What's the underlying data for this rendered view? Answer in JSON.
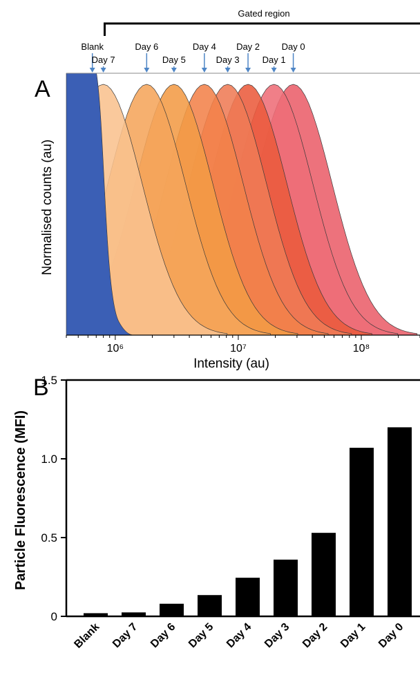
{
  "panel_a": {
    "panel_label": "A",
    "gate_label": "Gated region",
    "ylabel": "Normalised counts (au)",
    "xlabel": "Intensity (au)",
    "xtick_labels": [
      "10⁶",
      "10⁷",
      "10⁸"
    ],
    "marker_color": "#4f86c6",
    "blank_color": "#3b5fb5"
  },
  "panel_b": {
    "panel_label": "B",
    "ylabel": "Particle Fluorescence (MFI)",
    "ytick_labels": [
      "0",
      "0.5",
      "1.0",
      "1.5"
    ],
    "bar_color": "#000000"
  },
  "chart_data": [
    {
      "type": "area",
      "title": "",
      "xlabel": "Intensity (au)",
      "ylabel": "Normalised counts (au)",
      "x_scale": "log",
      "xlim": [
        400000,
        300000000
      ],
      "xticks": [
        1000000,
        10000000,
        100000000
      ],
      "gate_start": 820000,
      "grid": false,
      "series": [
        {
          "name": "Blank",
          "peak": 490000,
          "color": "#3b5fb5"
        },
        {
          "name": "Day 7",
          "peak": 800000,
          "color": "#f9c28e"
        },
        {
          "name": "Day 6",
          "peak": 1800000,
          "color": "#f5a55b"
        },
        {
          "name": "Day 5",
          "peak": 3000000,
          "color": "#f39b45"
        },
        {
          "name": "Day 4",
          "peak": 5300000,
          "color": "#f2824a"
        },
        {
          "name": "Day 3",
          "peak": 8200000,
          "color": "#ef7b55"
        },
        {
          "name": "Day 2",
          "peak": 12000000,
          "color": "#ea5b3c"
        },
        {
          "name": "Day 1",
          "peak": 19500000,
          "color": "#ee6d78"
        },
        {
          "name": "Day 0",
          "peak": 28000000,
          "color": "#ea5f6a"
        }
      ]
    },
    {
      "type": "bar",
      "title": "",
      "xlabel": "",
      "ylabel": "Particle Fluorescence (MFI)",
      "categories": [
        "Blank",
        "Day 7",
        "Day 6",
        "Day 5",
        "Day 4",
        "Day 3",
        "Day 2",
        "Day 1",
        "Day 0"
      ],
      "values": [
        0.02,
        0.025,
        0.08,
        0.135,
        0.245,
        0.36,
        0.53,
        1.07,
        1.2
      ],
      "ylim": [
        0,
        1.5
      ],
      "yticks": [
        0,
        0.5,
        1.0,
        1.5
      ],
      "grid": false
    }
  ]
}
